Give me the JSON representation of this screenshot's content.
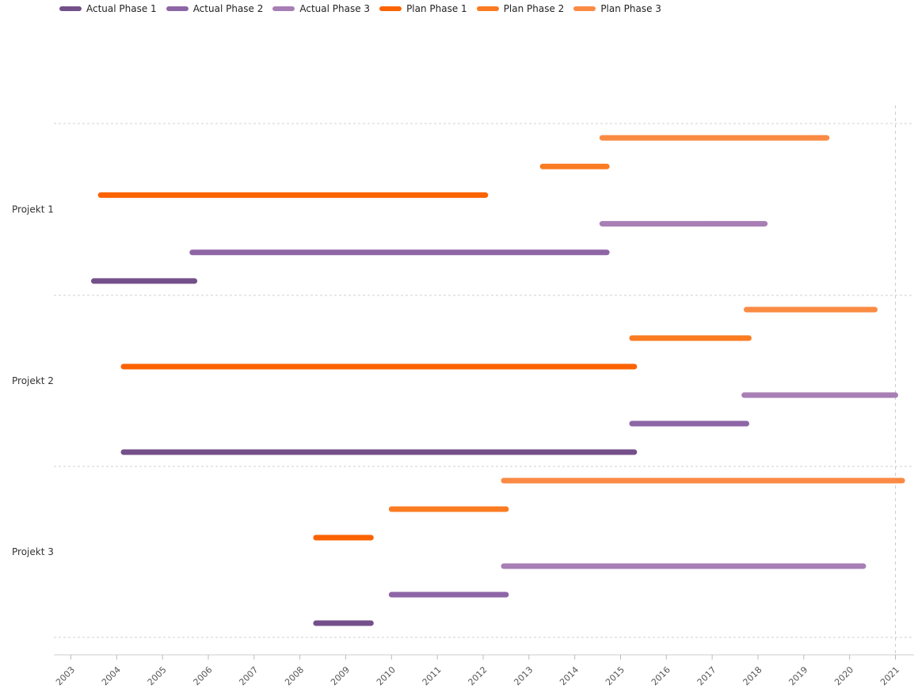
{
  "chart_data": {
    "type": "gantt",
    "title": "",
    "xlabel": "",
    "ylabel": "",
    "xlim": [
      2002.66,
      2021.4
    ],
    "grid": true,
    "legend_position": "top-left",
    "x_ticks": [
      "2003",
      "2004",
      "2005",
      "2006",
      "2007",
      "2008",
      "2009",
      "2010",
      "2011",
      "2012",
      "2013",
      "2014",
      "2015",
      "2016",
      "2017",
      "2018",
      "2019",
      "2020",
      "2021"
    ],
    "categories": [
      "Projekt 1",
      "Projekt 2",
      "Projekt 3"
    ],
    "series": [
      {
        "name": "Actual Phase 1",
        "color": "#74508a",
        "ranges": [
          [
            2003.5,
            2005.7
          ],
          [
            2004.15,
            2015.3
          ],
          [
            2008.35,
            2009.55
          ]
        ]
      },
      {
        "name": "Actual Phase 2",
        "color": "#8e66a6",
        "ranges": [
          [
            2005.65,
            2014.7
          ],
          [
            2015.25,
            2017.75
          ],
          [
            2010.0,
            2012.5
          ]
        ]
      },
      {
        "name": "Actual Phase 3",
        "color": "#a87fb5",
        "ranges": [
          [
            2014.6,
            2018.15
          ],
          [
            2017.7,
            2021.0
          ],
          [
            2012.45,
            2020.3
          ]
        ]
      },
      {
        "name": "Plan Phase 1",
        "color": "#fb6300",
        "ranges": [
          [
            2003.65,
            2012.05
          ],
          [
            2004.15,
            2015.3
          ],
          [
            2008.35,
            2009.55
          ]
        ]
      },
      {
        "name": "Plan Phase 2",
        "color": "#fa7b22",
        "ranges": [
          [
            2013.3,
            2014.7
          ],
          [
            2015.25,
            2017.8
          ],
          [
            2010.0,
            2012.5
          ]
        ]
      },
      {
        "name": "Plan Phase 3",
        "color": "#fb8b44",
        "ranges": [
          [
            2014.6,
            2019.5
          ],
          [
            2017.75,
            2020.55
          ],
          [
            2012.45,
            2021.15
          ]
        ]
      }
    ],
    "reference_line_x": 2021.0
  }
}
